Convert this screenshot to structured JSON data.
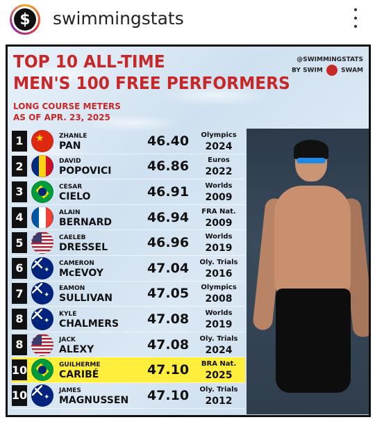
{
  "header": {
    "avatar_glyph": "$",
    "username": "swimmingstats"
  },
  "graphic": {
    "title_line1": "TOP 10 ALL-TIME",
    "title_line2": "MEN'S 100 FREE PERFORMERS",
    "subtitle_line1": "LONG COURSE METERS",
    "subtitle_line2": "AS OF APR. 23, 2025",
    "brand_line1": "@SWIMMINGSTATS",
    "brand_line2_a": "BY SWIM",
    "brand_line2_b": "SWAM",
    "colors": {
      "title": "#c62828",
      "highlight": "#ffee3b"
    },
    "rows": [
      {
        "rank": "1",
        "flag": "china",
        "first": "ZHANLE",
        "last": "PAN",
        "time": "46.40",
        "meet": "Olympics",
        "year": "2024",
        "highlight": false
      },
      {
        "rank": "2",
        "flag": "romania",
        "first": "DAVID",
        "last": "POPOVICI",
        "time": "46.86",
        "meet": "Euros",
        "year": "2022",
        "highlight": false
      },
      {
        "rank": "3",
        "flag": "brazil",
        "first": "CESAR",
        "last": "CIELO",
        "time": "46.91",
        "meet": "Worlds",
        "year": "2009",
        "highlight": false
      },
      {
        "rank": "4",
        "flag": "france",
        "first": "ALAIN",
        "last": "BERNARD",
        "time": "46.94",
        "meet": "FRA Nat.",
        "year": "2009",
        "highlight": false
      },
      {
        "rank": "5",
        "flag": "usa",
        "first": "CAELEB",
        "last": "DRESSEL",
        "time": "46.96",
        "meet": "Worlds",
        "year": "2019",
        "highlight": false
      },
      {
        "rank": "6",
        "flag": "australia",
        "first": "CAMERON",
        "last": "McEVOY",
        "time": "47.04",
        "meet": "Oly. Trials",
        "year": "2016",
        "highlight": false
      },
      {
        "rank": "7",
        "flag": "australia",
        "first": "EAMON",
        "last": "SULLIVAN",
        "time": "47.05",
        "meet": "Olympics",
        "year": "2008",
        "highlight": false
      },
      {
        "rank": "8",
        "flag": "australia",
        "first": "KYLE",
        "last": "CHALMERS",
        "time": "47.08",
        "meet": "Worlds",
        "year": "2019",
        "highlight": false
      },
      {
        "rank": "8",
        "flag": "usa",
        "first": "JACK",
        "last": "ALEXY",
        "time": "47.08",
        "meet": "Oly. Trials",
        "year": "2024",
        "highlight": false
      },
      {
        "rank": "10",
        "flag": "brazil",
        "first": "GUILHERME",
        "last": "CARIBÉ",
        "time": "47.10",
        "meet": "BRA Nat.",
        "year": "2025",
        "highlight": true
      },
      {
        "rank": "10",
        "flag": "australia",
        "first": "JAMES",
        "last": "MAGNUSSEN",
        "time": "47.10",
        "meet": "Oly. Trials",
        "year": "2012",
        "highlight": false
      }
    ]
  }
}
